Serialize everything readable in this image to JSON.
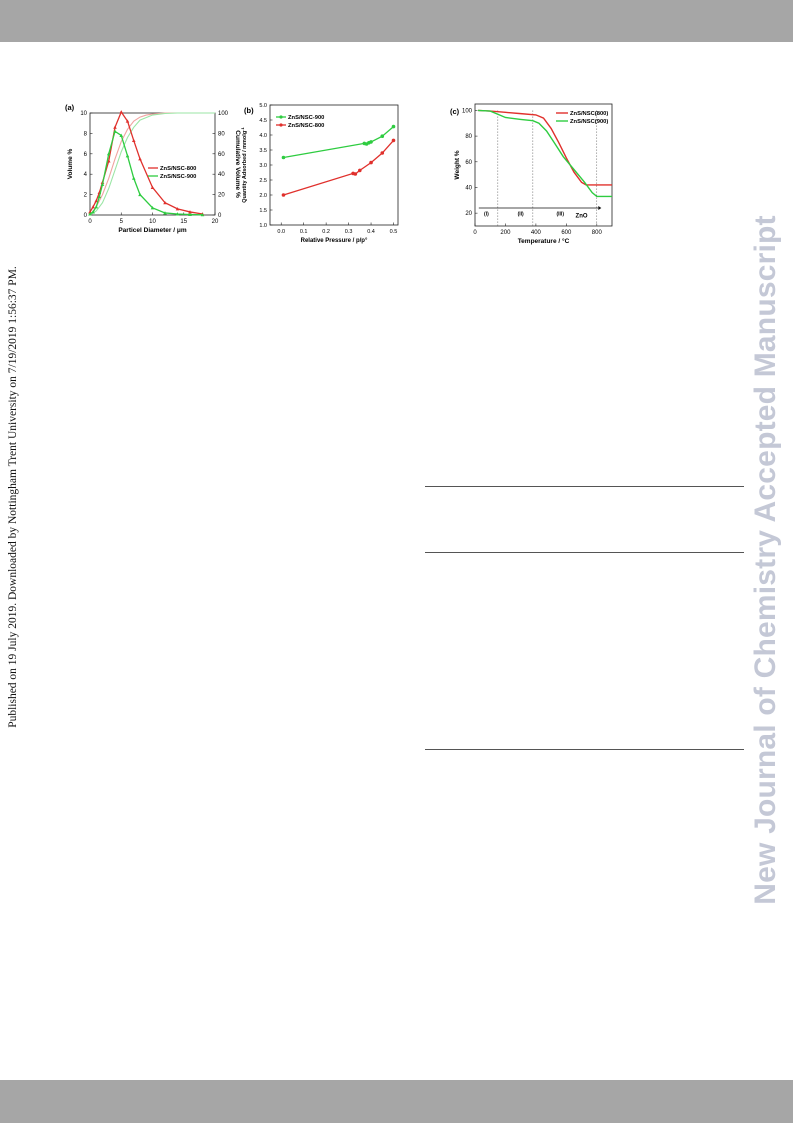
{
  "document": {
    "side_stamp": "Published on 19 July 2019. Downloaded by Nottingham Trent University on 7/19/2019 1:56:37 PM.",
    "watermark": "New Journal of Chemistry Accepted Manuscript",
    "colors": {
      "band": "#a6a6a6",
      "red": "#e0302c",
      "green": "#2ecc40",
      "watermark": "#c4c8d6"
    }
  },
  "chart_data": [
    {
      "type": "line",
      "panel_label": "(a)",
      "xlabel": "Particel Diameter / μm",
      "ylabel": "Volume %",
      "y2label": "Cumulative Volume %",
      "xlim": [
        0,
        20
      ],
      "ylim": [
        0,
        10
      ],
      "y2lim": [
        0,
        100
      ],
      "x_ticks": [
        "0",
        "5",
        "10",
        "15",
        "20"
      ],
      "y_ticks": [
        "0",
        "2",
        "4",
        "6",
        "8",
        "10"
      ],
      "y2_ticks": [
        "0",
        "20",
        "40",
        "60",
        "80",
        "100"
      ],
      "legend_position": "center-right",
      "series": [
        {
          "name": "ZnS/NSC-800",
          "color": "#e0302c",
          "x": [
            0,
            0.5,
            1,
            1.5,
            2,
            3,
            4,
            5,
            6,
            7,
            8,
            10,
            12,
            14,
            16,
            18
          ],
          "y": [
            0.3,
            0.8,
            1.4,
            2.2,
            3.2,
            5.3,
            8.6,
            10.1,
            9.2,
            7.3,
            5.5,
            2.7,
            1.2,
            0.6,
            0.3,
            0.1
          ]
        },
        {
          "name": "ZnS/NSC-900",
          "color": "#2ecc40",
          "x": [
            0,
            0.5,
            1,
            1.5,
            2,
            3,
            4,
            5,
            6,
            7,
            8,
            10,
            12,
            14,
            16,
            18
          ],
          "y": [
            0.1,
            0.3,
            0.8,
            1.8,
            3.0,
            6.0,
            8.2,
            7.8,
            5.8,
            3.6,
            2.0,
            0.7,
            0.2,
            0.1,
            0.05,
            0.02
          ]
        }
      ],
      "cumulative_series": [
        {
          "name": "ZnS/NSC-800",
          "color": "#f0a3a0",
          "x": [
            0,
            1,
            2,
            3,
            4,
            5,
            6,
            7,
            8,
            9,
            10,
            12,
            14,
            16,
            20
          ],
          "y": [
            0,
            8,
            20,
            36,
            55,
            72,
            84,
            92,
            96,
            98,
            99,
            100,
            100,
            100,
            100
          ]
        },
        {
          "name": "ZnS/NSC-900",
          "color": "#9be6a5",
          "x": [
            0,
            1,
            2,
            3,
            4,
            5,
            6,
            7,
            8,
            10,
            12,
            14,
            16,
            20
          ],
          "y": [
            0,
            4,
            12,
            26,
            44,
            62,
            76,
            86,
            93,
            98,
            99.5,
            100,
            100,
            100
          ]
        }
      ]
    },
    {
      "type": "line",
      "panel_label": "(b)",
      "xlabel": "Relative Pressure / p/p°",
      "ylabel": "Quantity Adsorbed / mmolg",
      "ylabel_sup": "-1",
      "xlim": [
        -0.05,
        0.52
      ],
      "ylim": [
        1.0,
        5.0
      ],
      "x_ticks": [
        "0.0",
        "0.1",
        "0.2",
        "0.3",
        "0.4",
        "0.5"
      ],
      "y_ticks": [
        "1.0",
        "1.5",
        "2.0",
        "2.5",
        "3.0",
        "3.5",
        "4.0",
        "4.5",
        "5.0"
      ],
      "legend_position": "top-left",
      "series": [
        {
          "name": "ZnS/NSC-900",
          "color": "#2ecc40",
          "x": [
            0.01,
            0.37,
            0.38,
            0.39,
            0.4,
            0.45,
            0.5
          ],
          "y": [
            3.25,
            3.72,
            3.7,
            3.74,
            3.77,
            3.96,
            4.28
          ]
        },
        {
          "name": "ZnS/NSC-800",
          "color": "#e0302c",
          "x": [
            0.01,
            0.32,
            0.33,
            0.35,
            0.4,
            0.45,
            0.5
          ],
          "y": [
            2.0,
            2.72,
            2.7,
            2.82,
            3.08,
            3.4,
            3.82
          ]
        }
      ]
    },
    {
      "type": "line",
      "panel_label": "(c)",
      "xlabel": "Temperature / °C",
      "ylabel": "Weight %",
      "xlim": [
        0,
        900
      ],
      "ylim": [
        10,
        105
      ],
      "x_ticks": [
        "0",
        "200",
        "400",
        "600",
        "800"
      ],
      "y_ticks": [
        "20",
        "40",
        "60",
        "80",
        "100"
      ],
      "legend_position": "top-right",
      "region_labels": [
        "(I)",
        "(II)",
        "(III)"
      ],
      "product_label": "ZnO",
      "series": [
        {
          "name": "ZnS/NSC(800)",
          "color": "#e0302c",
          "x": [
            20,
            100,
            200,
            300,
            400,
            450,
            500,
            550,
            600,
            650,
            700,
            730,
            800,
            900
          ],
          "y": [
            100,
            99.5,
            98.5,
            97.5,
            96.5,
            94,
            86,
            75,
            63,
            52,
            44,
            42,
            42,
            42
          ]
        },
        {
          "name": "ZnS/NSC(900)",
          "color": "#2ecc40",
          "x": [
            20,
            100,
            150,
            200,
            300,
            380,
            420,
            470,
            520,
            580,
            650,
            720,
            770,
            800,
            900
          ],
          "y": [
            100,
            99.5,
            97,
            94.5,
            93,
            92,
            90,
            84,
            75,
            64,
            54,
            44,
            36,
            33,
            33
          ]
        }
      ]
    }
  ]
}
